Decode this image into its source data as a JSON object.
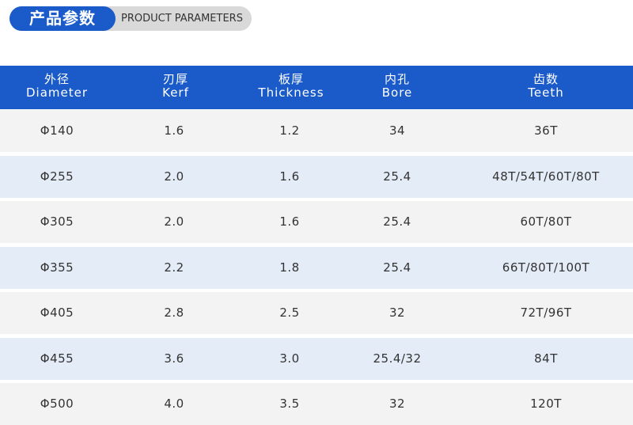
{
  "header": {
    "title": "产品参数",
    "subtitle": "PRODUCT PARAMETERS"
  },
  "table": {
    "columns": [
      {
        "zh": "外径",
        "en": "Diameter"
      },
      {
        "zh": "刃厚",
        "en": "Kerf"
      },
      {
        "zh": "板厚",
        "en": "Thickness"
      },
      {
        "zh": "内孔",
        "en": "Bore"
      },
      {
        "zh": "齿数",
        "en": "Teeth"
      }
    ],
    "rows": [
      [
        "Φ140",
        "1.6",
        "1.2",
        "34",
        "36T"
      ],
      [
        "Φ255",
        "2.0",
        "1.6",
        "25.4",
        "48T/54T/60T/80T"
      ],
      [
        "Φ305",
        "2.0",
        "1.6",
        "25.4",
        "60T/80T"
      ],
      [
        "Φ355",
        "2.2",
        "1.8",
        "25.4",
        "66T/80T/100T"
      ],
      [
        "Φ405",
        "2.8",
        "2.5",
        "32",
        "72T/96T"
      ],
      [
        "Φ455",
        "3.6",
        "3.0",
        "25.4/32",
        "84T"
      ],
      [
        "Φ500",
        "4.0",
        "3.5",
        "32",
        "120T"
      ]
    ]
  }
}
